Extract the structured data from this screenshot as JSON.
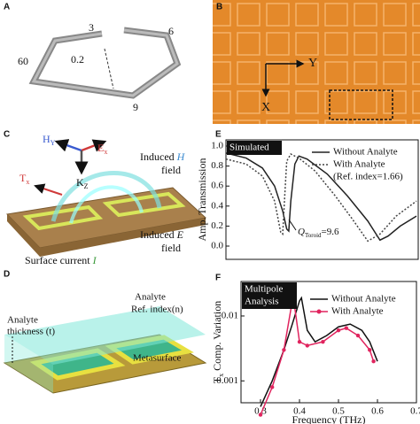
{
  "panels": {
    "a": {
      "label": "A",
      "dims": [
        "3",
        "6",
        "60",
        "0.2",
        "9"
      ]
    },
    "b": {
      "label": "B",
      "axes": [
        "Y",
        "X"
      ]
    },
    "c": {
      "label": "C",
      "h": "H",
      "h_sub": "Y",
      "e": "E",
      "e_sub": "x",
      "k": "K",
      "k_sub": "Z",
      "t": "T",
      "t_sub": "x",
      "induced_h": "Induced",
      "h_sym": "H",
      "field_h": "field",
      "induced_e": "Induced",
      "e_sym": "E",
      "field_e": "field",
      "surface_current": "Surface current",
      "i_sym": "I"
    },
    "d": {
      "label": "D",
      "thickness_1": "Analyte",
      "thickness_2": "thickness (t)",
      "ref_1": "Analyte",
      "ref_2": "Ref. index(n)",
      "metasurface": "Metasurface"
    },
    "e": {
      "label": "E"
    },
    "f": {
      "label": "F"
    }
  },
  "chart_data": [
    {
      "type": "line",
      "title": "Simulated",
      "ylabel": "Amp. Transmission",
      "xlim": [
        0.25,
        0.72
      ],
      "ylim": [
        0,
        1.0
      ],
      "yticks": [
        {
          "value": 0,
          "label": "0.0"
        },
        0.2,
        0.4,
        0.6,
        0.8,
        {
          "value": 1.0,
          "label": "1.0"
        }
      ],
      "legend_note": "(Ref. index=1.66)",
      "annotation": {
        "text": "Q",
        "sub": "Toroid",
        "suffix": "=9.6"
      },
      "series": [
        {
          "name": "Without Analyte",
          "color": "#222222",
          "dash": false,
          "x": [
            0.25,
            0.3,
            0.34,
            0.37,
            0.39,
            0.4,
            0.405,
            0.41,
            0.42,
            0.43,
            0.45,
            0.5,
            0.55,
            0.6,
            0.63,
            0.65,
            0.68,
            0.72
          ],
          "values": [
            0.93,
            0.88,
            0.78,
            0.6,
            0.35,
            0.17,
            0.15,
            0.45,
            0.82,
            0.9,
            0.87,
            0.72,
            0.5,
            0.25,
            0.06,
            0.1,
            0.2,
            0.3
          ]
        },
        {
          "name": "With Analyte",
          "color": "#444444",
          "dash": true,
          "x": [
            0.25,
            0.3,
            0.34,
            0.37,
            0.385,
            0.39,
            0.395,
            0.4,
            0.41,
            0.43,
            0.47,
            0.52,
            0.56,
            0.6,
            0.63,
            0.67,
            0.72
          ],
          "values": [
            0.87,
            0.82,
            0.7,
            0.45,
            0.14,
            0.12,
            0.5,
            0.85,
            0.92,
            0.88,
            0.75,
            0.5,
            0.28,
            0.05,
            0.12,
            0.3,
            0.45
          ]
        }
      ]
    },
    {
      "type": "line",
      "title": [
        "Multipole",
        "Analysis"
      ],
      "log_y": true,
      "ylabel": {
        "main": "T",
        "sub": "x",
        "rest": " Comp. Variation"
      },
      "xlabel": "Frequency (THz)",
      "xlim": [
        0.25,
        0.7
      ],
      "ylim": [
        0.00046,
        0.034
      ],
      "xticks": [
        0.3,
        0.4,
        0.5,
        0.6,
        0.7
      ],
      "yticks": [
        0.001,
        0.01
      ],
      "series": [
        {
          "name": "Without Analyte",
          "color": "#111111",
          "marker": false,
          "x": [
            0.3,
            0.33,
            0.36,
            0.38,
            0.4,
            0.405,
            0.42,
            0.44,
            0.47,
            0.5,
            0.53,
            0.56,
            0.58,
            0.6
          ],
          "values": [
            0.0004,
            0.001,
            0.003,
            0.007,
            0.017,
            0.019,
            0.006,
            0.004,
            0.005,
            0.0068,
            0.0075,
            0.006,
            0.004,
            0.002
          ]
        },
        {
          "name": "With Analyte",
          "color": "#e0245e",
          "marker": true,
          "x": [
            0.3,
            0.33,
            0.36,
            0.38,
            0.385,
            0.4,
            0.42,
            0.46,
            0.5,
            0.52,
            0.55,
            0.58,
            0.59
          ],
          "values": [
            0.0003,
            0.0008,
            0.003,
            0.015,
            0.018,
            0.004,
            0.0035,
            0.004,
            0.006,
            0.0065,
            0.005,
            0.003,
            0.002
          ]
        }
      ]
    }
  ]
}
